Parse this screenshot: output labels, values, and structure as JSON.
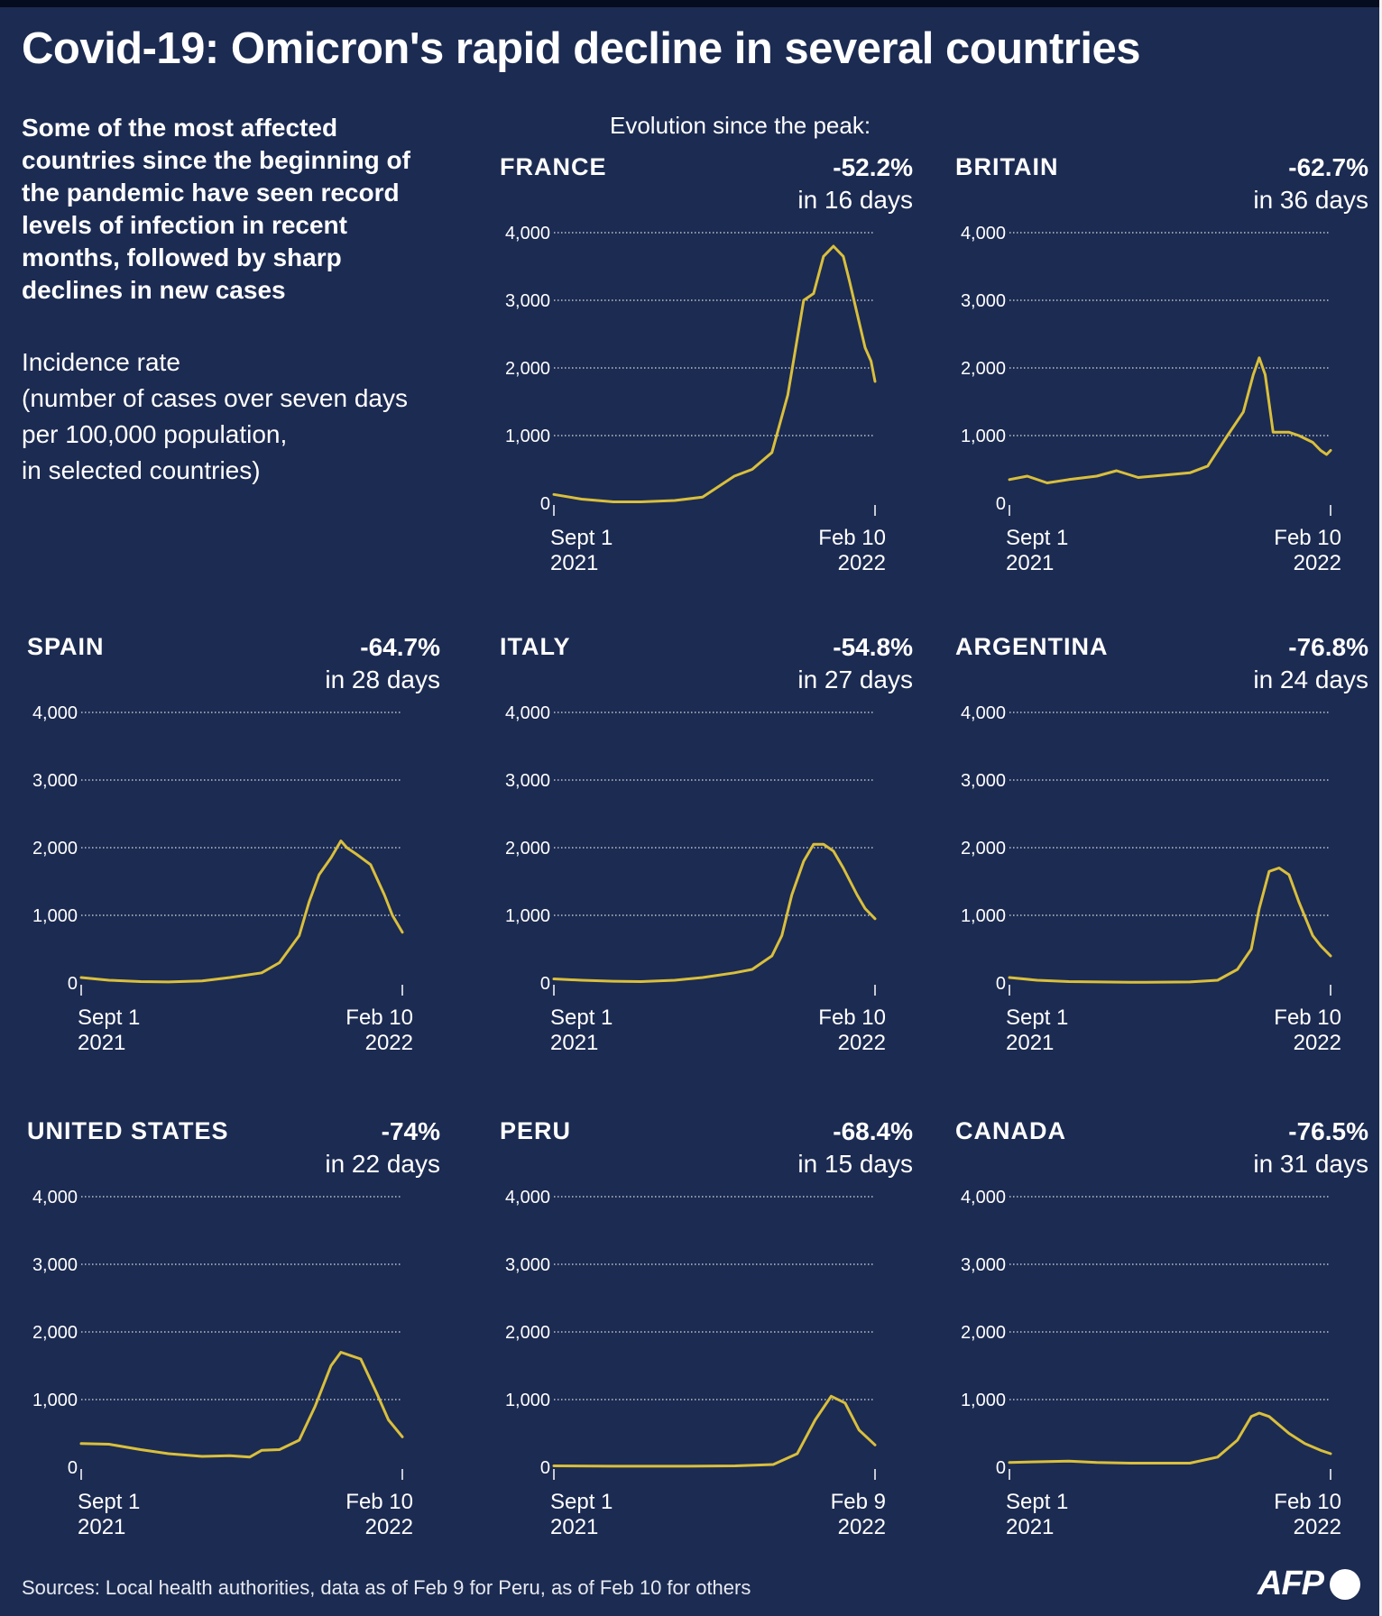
{
  "header": {
    "title": "Covid-19: Omicron's rapid decline in several countries",
    "intro_bold": "Some of the most affected countries since the beginning of the pandemic have seen record levels of infection in recent months, followed by sharp declines in new cases",
    "intro_desc_lines": [
      "Incidence rate",
      "(number of cases over seven days",
      "per 100,000 population,",
      "in selected countries)"
    ],
    "evolution_label": "Evolution since the peak:"
  },
  "footer": {
    "source": "Sources: Local health authorities, data as of Feb 9 for Peru, as of Feb 10 for others",
    "logo": "AFP"
  },
  "colors": {
    "background": "#1c2b52",
    "line": "#d9bf3c",
    "grid": "#ffffff",
    "text": "#ffffff"
  },
  "chart_data": [
    {
      "type": "line",
      "title": "FRANCE",
      "change": "-52.2%",
      "period": "in 16 days",
      "x_start_label": [
        "Sept 1",
        "2021"
      ],
      "x_end_label": [
        "Feb 10",
        "2022"
      ],
      "ylim": [
        0,
        4000
      ],
      "y_ticks": [
        "0",
        "1,000",
        "2,000",
        "3,000",
        "4,000"
      ],
      "grid": true,
      "x": [
        "2021-09-01",
        "2021-09-15",
        "2021-10-01",
        "2021-10-15",
        "2021-11-01",
        "2021-11-15",
        "2021-12-01",
        "2021-12-10",
        "2021-12-20",
        "2021-12-28",
        "2022-01-01",
        "2022-01-05",
        "2022-01-10",
        "2022-01-15",
        "2022-01-20",
        "2022-01-25",
        "2022-01-28",
        "2022-02-01",
        "2022-02-05",
        "2022-02-08",
        "2022-02-10"
      ],
      "values": [
        130,
        60,
        20,
        20,
        40,
        90,
        400,
        500,
        750,
        1600,
        2300,
        3000,
        3100,
        3650,
        3800,
        3650,
        3300,
        2800,
        2300,
        2100,
        1800
      ]
    },
    {
      "type": "line",
      "title": "BRITAIN",
      "change": "-62.7%",
      "period": "in 36 days",
      "x_start_label": [
        "Sept 1",
        "2021"
      ],
      "x_end_label": [
        "Feb 10",
        "2022"
      ],
      "ylim": [
        0,
        4000
      ],
      "y_ticks": [
        "0",
        "1,000",
        "2,000",
        "3,000",
        "4,000"
      ],
      "grid": true,
      "x": [
        "2021-09-01",
        "2021-09-10",
        "2021-09-20",
        "2021-10-01",
        "2021-10-15",
        "2021-10-25",
        "2021-11-05",
        "2021-11-20",
        "2021-12-01",
        "2021-12-10",
        "2021-12-20",
        "2021-12-28",
        "2022-01-02",
        "2022-01-05",
        "2022-01-08",
        "2022-01-12",
        "2022-01-20",
        "2022-01-25",
        "2022-02-01",
        "2022-02-05",
        "2022-02-08",
        "2022-02-10"
      ],
      "values": [
        350,
        400,
        300,
        350,
        400,
        480,
        380,
        420,
        450,
        550,
        1000,
        1350,
        1900,
        2150,
        1900,
        1050,
        1050,
        1000,
        900,
        780,
        720,
        780
      ]
    },
    {
      "type": "line",
      "title": "SPAIN",
      "change": "-64.7%",
      "period": "in 28 days",
      "x_start_label": [
        "Sept 1",
        "2021"
      ],
      "x_end_label": [
        "Feb 10",
        "2022"
      ],
      "ylim": [
        0,
        4000
      ],
      "y_ticks": [
        "0",
        "1,000",
        "2,000",
        "3,000",
        "4,000"
      ],
      "grid": true,
      "x": [
        "2021-09-01",
        "2021-09-15",
        "2021-10-01",
        "2021-10-15",
        "2021-11-01",
        "2021-11-15",
        "2021-12-01",
        "2021-12-10",
        "2021-12-20",
        "2021-12-25",
        "2021-12-30",
        "2022-01-05",
        "2022-01-10",
        "2022-01-13",
        "2022-01-18",
        "2022-01-25",
        "2022-02-01",
        "2022-02-05",
        "2022-02-10"
      ],
      "values": [
        80,
        40,
        20,
        15,
        30,
        80,
        150,
        300,
        700,
        1200,
        1600,
        1850,
        2100,
        2000,
        1900,
        1750,
        1300,
        1000,
        750
      ]
    },
    {
      "type": "line",
      "title": "ITALY",
      "change": "-54.8%",
      "period": "in 27 days",
      "x_start_label": [
        "Sept 1",
        "2021"
      ],
      "x_end_label": [
        "Feb 10",
        "2022"
      ],
      "ylim": [
        0,
        4000
      ],
      "y_ticks": [
        "0",
        "1,000",
        "2,000",
        "3,000",
        "4,000"
      ],
      "grid": true,
      "x": [
        "2021-09-01",
        "2021-09-15",
        "2021-10-01",
        "2021-10-15",
        "2021-11-01",
        "2021-11-15",
        "2021-12-01",
        "2021-12-10",
        "2021-12-20",
        "2021-12-25",
        "2021-12-30",
        "2022-01-05",
        "2022-01-10",
        "2022-01-15",
        "2022-01-20",
        "2022-01-25",
        "2022-02-01",
        "2022-02-05",
        "2022-02-10"
      ],
      "values": [
        60,
        40,
        25,
        20,
        40,
        80,
        150,
        200,
        400,
        700,
        1300,
        1800,
        2050,
        2050,
        1950,
        1700,
        1300,
        1100,
        950
      ]
    },
    {
      "type": "line",
      "title": "ARGENTINA",
      "change": "-76.8%",
      "period": "in 24 days",
      "x_start_label": [
        "Sept 1",
        "2021"
      ],
      "x_end_label": [
        "Feb 10",
        "2022"
      ],
      "ylim": [
        0,
        4000
      ],
      "y_ticks": [
        "0",
        "1,000",
        "2,000",
        "3,000",
        "4,000"
      ],
      "grid": true,
      "x": [
        "2021-09-01",
        "2021-09-15",
        "2021-10-01",
        "2021-11-01",
        "2021-12-01",
        "2021-12-15",
        "2021-12-25",
        "2022-01-01",
        "2022-01-05",
        "2022-01-10",
        "2022-01-15",
        "2022-01-20",
        "2022-01-25",
        "2022-02-01",
        "2022-02-05",
        "2022-02-10"
      ],
      "values": [
        80,
        40,
        20,
        10,
        15,
        40,
        200,
        500,
        1100,
        1650,
        1700,
        1600,
        1200,
        700,
        550,
        400
      ]
    },
    {
      "type": "line",
      "title": "UNITED STATES",
      "change": "-74%",
      "period": "in 22 days",
      "x_start_label": [
        "Sept 1",
        "2021"
      ],
      "x_end_label": [
        "Feb 10",
        "2022"
      ],
      "ylim": [
        0,
        4000
      ],
      "y_ticks": [
        "0",
        "1,000",
        "2,000",
        "3,000",
        "4,000"
      ],
      "grid": true,
      "x": [
        "2021-09-01",
        "2021-09-15",
        "2021-10-01",
        "2021-10-15",
        "2021-11-01",
        "2021-11-15",
        "2021-11-25",
        "2021-12-01",
        "2021-12-10",
        "2021-12-20",
        "2021-12-28",
        "2022-01-05",
        "2022-01-10",
        "2022-01-15",
        "2022-01-20",
        "2022-01-28",
        "2022-02-03",
        "2022-02-10"
      ],
      "values": [
        350,
        340,
        260,
        200,
        160,
        170,
        150,
        250,
        260,
        400,
        900,
        1500,
        1700,
        1650,
        1600,
        1100,
        700,
        450
      ]
    },
    {
      "type": "line",
      "title": "PERU",
      "change": "-68.4%",
      "period": "in 15 days",
      "x_start_label": [
        "Sept 1",
        "2021"
      ],
      "x_end_label": [
        "Feb 9",
        "2022"
      ],
      "ylim": [
        0,
        4000
      ],
      "y_ticks": [
        "0",
        "1,000",
        "2,000",
        "3,000",
        "4,000"
      ],
      "grid": true,
      "x": [
        "2021-09-01",
        "2021-10-01",
        "2021-11-01",
        "2021-12-01",
        "2021-12-20",
        "2022-01-01",
        "2022-01-10",
        "2022-01-18",
        "2022-01-25",
        "2022-02-01",
        "2022-02-09"
      ],
      "values": [
        20,
        15,
        15,
        20,
        40,
        200,
        700,
        1050,
        950,
        550,
        330
      ]
    },
    {
      "type": "line",
      "title": "CANADA",
      "change": "-76.5%",
      "period": "in 31 days",
      "x_start_label": [
        "Sept 1",
        "2021"
      ],
      "x_end_label": [
        "Feb 10",
        "2022"
      ],
      "ylim": [
        0,
        4000
      ],
      "y_ticks": [
        "0",
        "1,000",
        "2,000",
        "3,000",
        "4,000"
      ],
      "grid": true,
      "x": [
        "2021-09-01",
        "2021-09-15",
        "2021-10-01",
        "2021-10-15",
        "2021-11-01",
        "2021-11-15",
        "2021-12-01",
        "2021-12-15",
        "2021-12-25",
        "2022-01-01",
        "2022-01-05",
        "2022-01-10",
        "2022-01-20",
        "2022-01-28",
        "2022-02-05",
        "2022-02-10"
      ],
      "values": [
        70,
        80,
        90,
        70,
        60,
        60,
        60,
        150,
        400,
        750,
        800,
        750,
        500,
        350,
        250,
        200
      ]
    }
  ]
}
